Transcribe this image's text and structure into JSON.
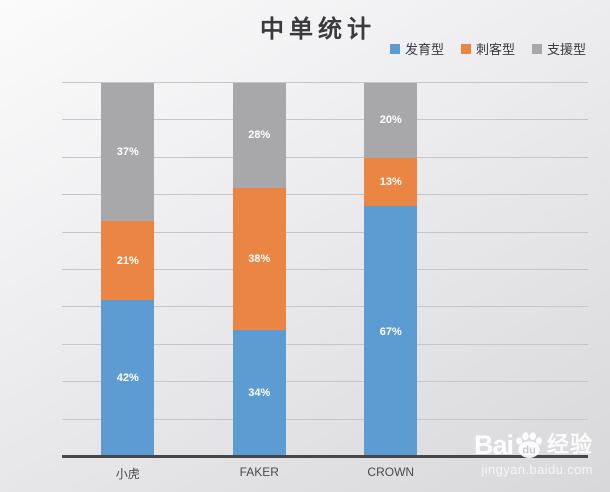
{
  "chart_data": {
    "type": "bar",
    "subtype": "stacked-percent-column",
    "title": "中单统计",
    "categories": [
      "小虎",
      "FAKER",
      "CROWN"
    ],
    "series": [
      {
        "name": "发育型",
        "color": "#5d9bd3",
        "values": [
          42,
          34,
          67
        ],
        "labels": [
          "42%",
          "34%",
          "67%"
        ]
      },
      {
        "name": "刺客型",
        "color": "#ea8544",
        "values": [
          21,
          38,
          13
        ],
        "labels": [
          "21%",
          "38%",
          "13%"
        ]
      },
      {
        "name": "支援型",
        "color": "#a8a8aa",
        "values": [
          37,
          28,
          20
        ],
        "labels": [
          "37%",
          "28%",
          "20%"
        ]
      }
    ],
    "stack_order": "first-series-at-bottom",
    "ylim": [
      0,
      100
    ],
    "gridline_step": 10,
    "grid": "horizontal",
    "y_axis_tick_labels": "none",
    "legend_position": "top-right",
    "category_axis_slots": 4
  },
  "watermark": {
    "brand_prefix": "Bai",
    "brand_paw_text": "du",
    "brand_suffix": "经验",
    "url": "jingyan.baidu.com"
  }
}
